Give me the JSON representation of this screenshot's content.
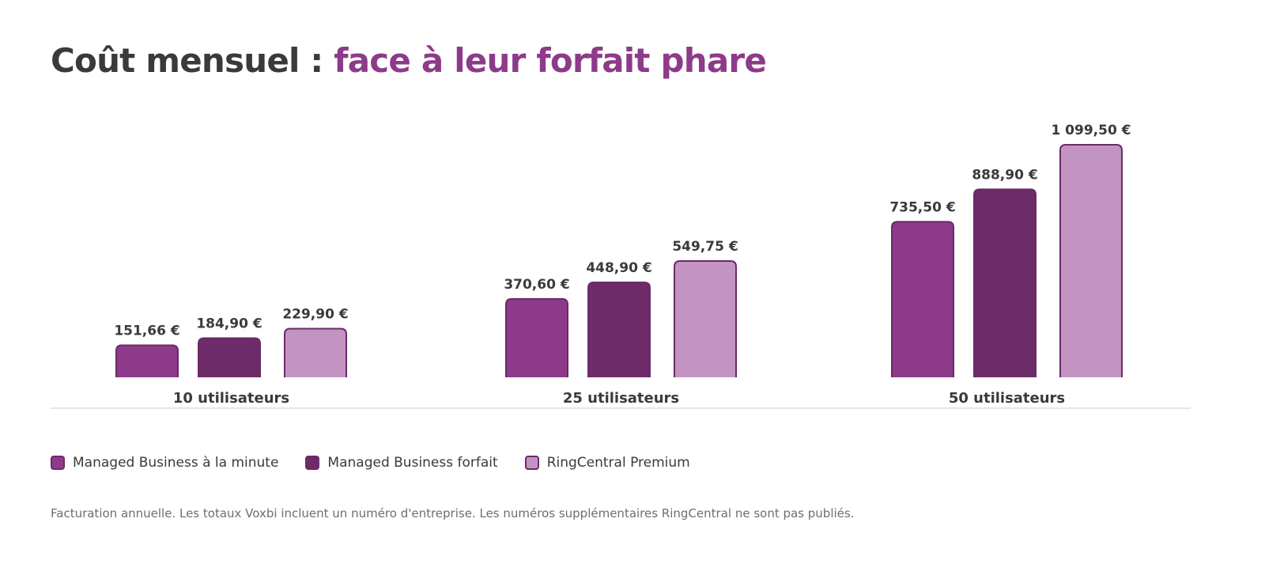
{
  "title": {
    "prefix": "Coût mensuel : ",
    "accent": "face à leur forfait phare"
  },
  "colors": {
    "title_accent": "#8e3a8a",
    "text": "#3a3a3a",
    "series_1": "#8e3a8a",
    "series_2": "#6e2b6a",
    "series_3": "#c394c2",
    "bar_stroke": "#6b2a68",
    "baseline": "#e6e6e6"
  },
  "legend": [
    {
      "label": "Managed Business à la minute",
      "color": "#8e3a8a"
    },
    {
      "label": "Managed Business forfait",
      "color": "#6e2b6a"
    },
    {
      "label": "RingCentral Premium",
      "color": "#c394c2"
    }
  ],
  "footnote": "Facturation annuelle. Les totaux Voxbi incluent un numéro d'entreprise. Les numéros supplémentaires RingCentral ne sont pas publiés.",
  "chart_data": {
    "type": "bar",
    "categories": [
      "10 utilisateurs",
      "25 utilisateurs",
      "50 utilisateurs"
    ],
    "series": [
      {
        "name": "Managed Business à la minute",
        "values": [
          151.66,
          370.6,
          735.5
        ],
        "labels": [
          "151,66 €",
          "370,60 €",
          "735,50 €"
        ]
      },
      {
        "name": "Managed Business forfait",
        "values": [
          184.9,
          448.9,
          888.9
        ],
        "labels": [
          "184,90 €",
          "448,90 €",
          "888,90 €"
        ]
      },
      {
        "name": "RingCentral Premium",
        "values": [
          229.9,
          549.75,
          1099.5
        ],
        "labels": [
          "229,90 €",
          "549,75 €",
          "1 099,50 €"
        ]
      }
    ],
    "ylim": [
      0,
      1099.5
    ],
    "grid": false,
    "legend_position": "bottom-left",
    "xlabel": "",
    "ylabel": ""
  }
}
